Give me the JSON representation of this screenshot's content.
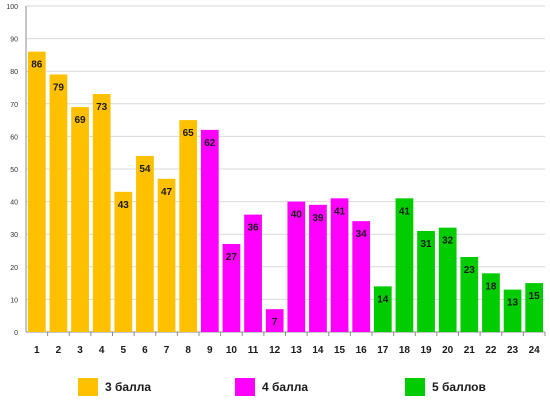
{
  "chart_data": {
    "type": "bar",
    "categories": [
      "1",
      "2",
      "3",
      "4",
      "5",
      "6",
      "7",
      "8",
      "9",
      "10",
      "11",
      "12",
      "13",
      "14",
      "15",
      "16",
      "17",
      "18",
      "19",
      "20",
      "21",
      "22",
      "23",
      "24"
    ],
    "values": [
      86,
      79,
      69,
      73,
      43,
      54,
      47,
      65,
      62,
      27,
      36,
      7,
      40,
      39,
      41,
      34,
      14,
      41,
      31,
      32,
      23,
      18,
      13,
      15
    ],
    "groups": [
      "3 балла",
      "3 балла",
      "3 балла",
      "3 балла",
      "3 балла",
      "3 балла",
      "3 балла",
      "3 балла",
      "4 балла",
      "4 балла",
      "4 балла",
      "4 балла",
      "4 балла",
      "4 балла",
      "4 балла",
      "4 балла",
      "5 баллов",
      "5 баллов",
      "5 баллов",
      "5 баллов",
      "5 баллов",
      "5 баллов",
      "5 баллов",
      "5 баллов"
    ],
    "ylim": [
      0,
      100
    ],
    "yticks": [
      "0",
      "10",
      "20",
      "30",
      "40",
      "50",
      "60",
      "70",
      "80",
      "90",
      "100"
    ],
    "grid": "horizontal",
    "legend_position": "bottom",
    "legend": [
      {
        "label": "3 балла",
        "color": "#FFC000"
      },
      {
        "label": "4 балла",
        "color": "#FF00FF"
      },
      {
        "label": "5 баллов",
        "color": "#00CC00"
      }
    ]
  }
}
